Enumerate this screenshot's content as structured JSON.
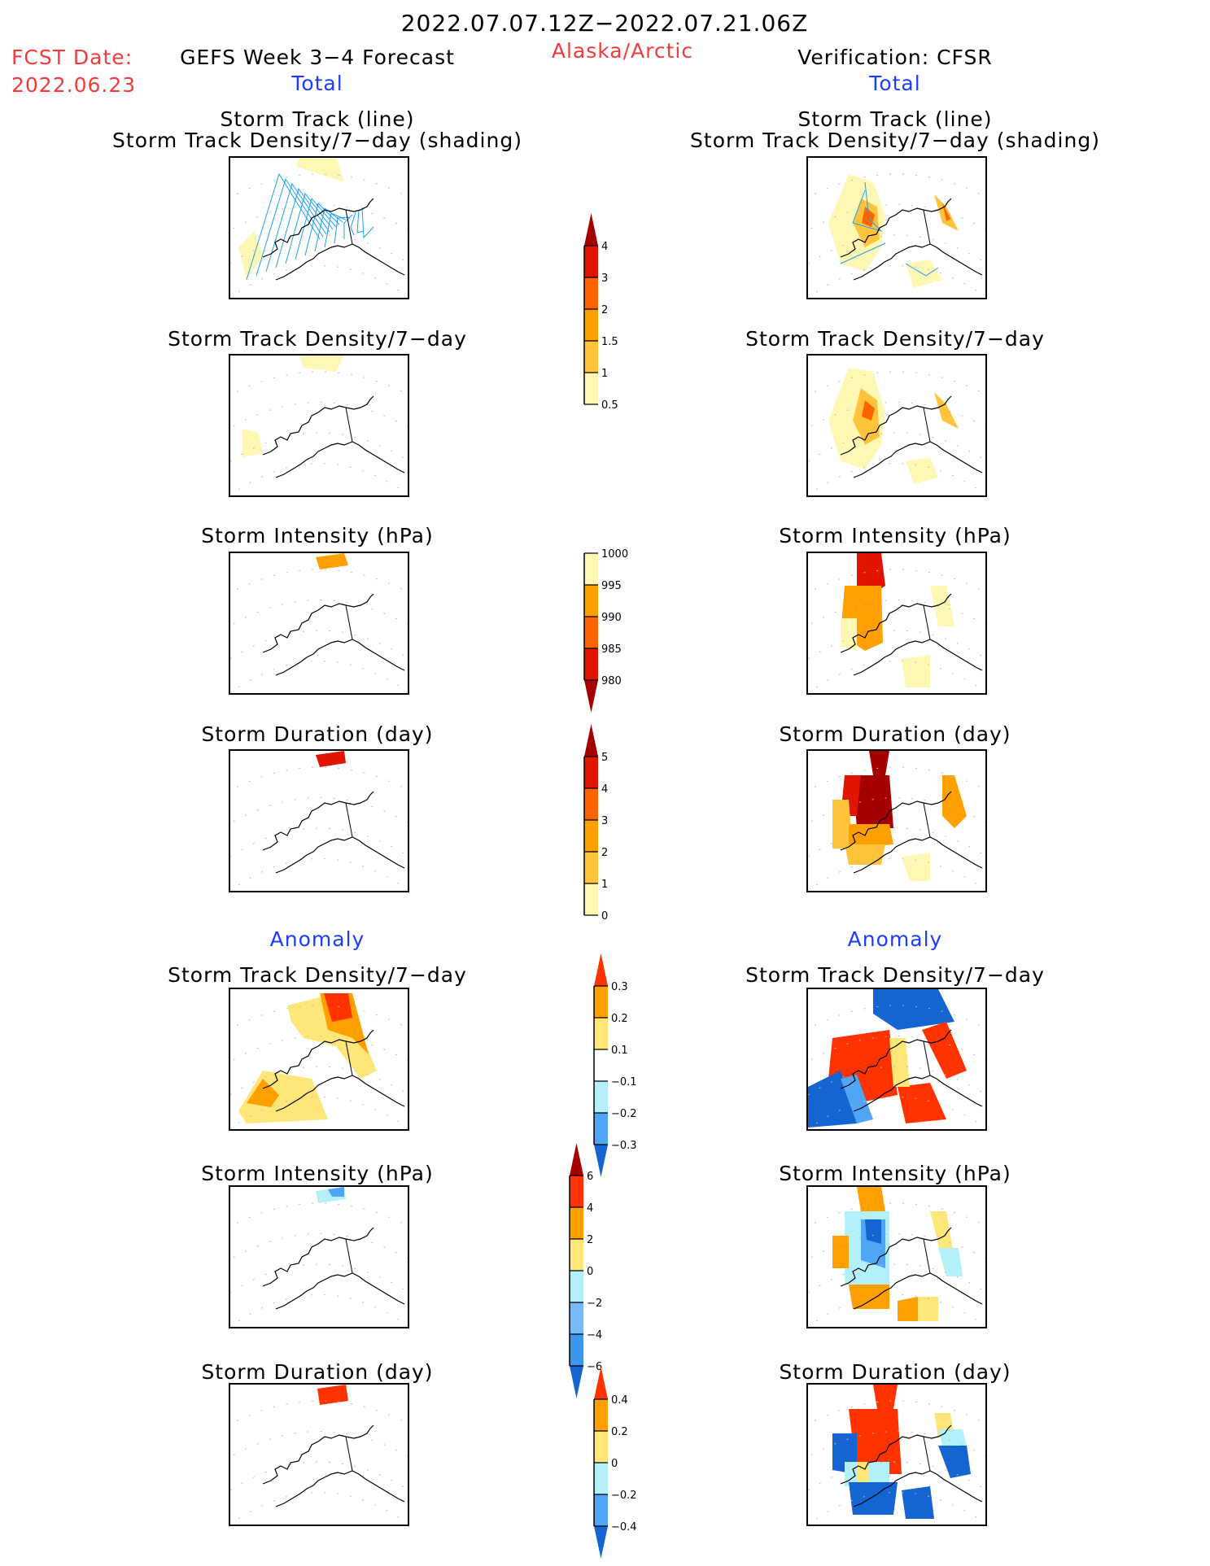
{
  "header": {
    "period": "2022.07.07.12Z−2022.07.21.06Z",
    "region": "Alaska/Arctic",
    "fcst_label": "FCST Date:",
    "fcst_date": "2022.06.23",
    "left_title": "GEFS Week 3−4 Forecast",
    "right_title": "Verification: CFSR",
    "left_section_total": "Total",
    "right_section_total": "Total",
    "left_section_anomaly": "Anomaly",
    "right_section_anomaly": "Anomaly"
  },
  "panel_titles": {
    "track_line": "Storm Track (line)",
    "track_shading": "Storm Track Density/7−day (shading)",
    "density": "Storm Track Density/7−day",
    "intensity": "Storm Intensity (hPa)",
    "duration": "Storm Duration (day)"
  },
  "colors": {
    "track_line": "#1ea0f0",
    "coast": "#000000",
    "title_red": "#f03c3c",
    "title_blue": "#1e3cff"
  },
  "chart_data": [
    {
      "type": "heatmap",
      "name": "total-density-colorbar",
      "title": "Storm Track Density/7-day",
      "levels": [
        0.5,
        1,
        1.5,
        2,
        3,
        4
      ],
      "tick_labels": [
        "0.5",
        "1",
        "1.5",
        "2",
        "3",
        "4"
      ],
      "colors": [
        "#fff8b4",
        "#ffc43c",
        "#ffa000",
        "#ff6400",
        "#e11400",
        "#a50000"
      ],
      "extend": "max"
    },
    {
      "type": "heatmap",
      "name": "total-intensity-colorbar",
      "title": "Storm Intensity (hPa)",
      "levels": [
        1000,
        995,
        990,
        985,
        980
      ],
      "tick_labels": [
        "1000",
        "995",
        "990",
        "985",
        "980"
      ],
      "colors": [
        "#fff8b4",
        "#ffa000",
        "#ff6400",
        "#e11400",
        "#a50000"
      ],
      "extend": "min-reversed"
    },
    {
      "type": "heatmap",
      "name": "total-duration-colorbar",
      "title": "Storm Duration (day)",
      "levels": [
        0,
        1,
        2,
        3,
        4,
        5
      ],
      "tick_labels": [
        "0",
        "1",
        "2",
        "3",
        "4",
        "5"
      ],
      "colors": [
        "#fff8b4",
        "#ffc43c",
        "#ffa000",
        "#ff6400",
        "#e11400",
        "#a50000"
      ],
      "extend": "max"
    },
    {
      "type": "heatmap",
      "name": "anomaly-density-colorbar",
      "title": "Storm Track Density/7-day Anomaly",
      "levels": [
        0.3,
        0.2,
        0.1,
        -0.1,
        -0.2,
        -0.3
      ],
      "tick_labels": [
        "0.3",
        "0.2",
        "0.1",
        "−0.1",
        "−0.2",
        "−0.3"
      ],
      "colors": [
        "#ff3200",
        "#ffa000",
        "#ffe678",
        "#ffffff",
        "#b4f0fa",
        "#50a5f5",
        "#1464d2"
      ],
      "extend": "both"
    },
    {
      "type": "heatmap",
      "name": "anomaly-intensity-colorbar",
      "title": "Storm Intensity (hPa) Anomaly",
      "levels": [
        6,
        4,
        2,
        0,
        -2,
        -4,
        -6
      ],
      "tick_labels": [
        "6",
        "4",
        "2",
        "0",
        "−2",
        "−4",
        "−6"
      ],
      "colors": [
        "#a50000",
        "#ff3200",
        "#ffa000",
        "#ffe678",
        "#b4f0fa",
        "#78b9fa",
        "#3c96f0",
        "#1464d2"
      ],
      "extend": "both"
    },
    {
      "type": "heatmap",
      "name": "anomaly-duration-colorbar",
      "title": "Storm Duration (day) Anomaly",
      "levels": [
        0.4,
        0.2,
        0,
        -0.2,
        -0.4
      ],
      "tick_labels": [
        "0.4",
        "0.2",
        "0",
        "−0.2",
        "−0.4"
      ],
      "colors": [
        "#ff3200",
        "#ffa000",
        "#ffe678",
        "#b4f0fa",
        "#50a5f5",
        "#1464d2"
      ],
      "extend": "both"
    }
  ]
}
